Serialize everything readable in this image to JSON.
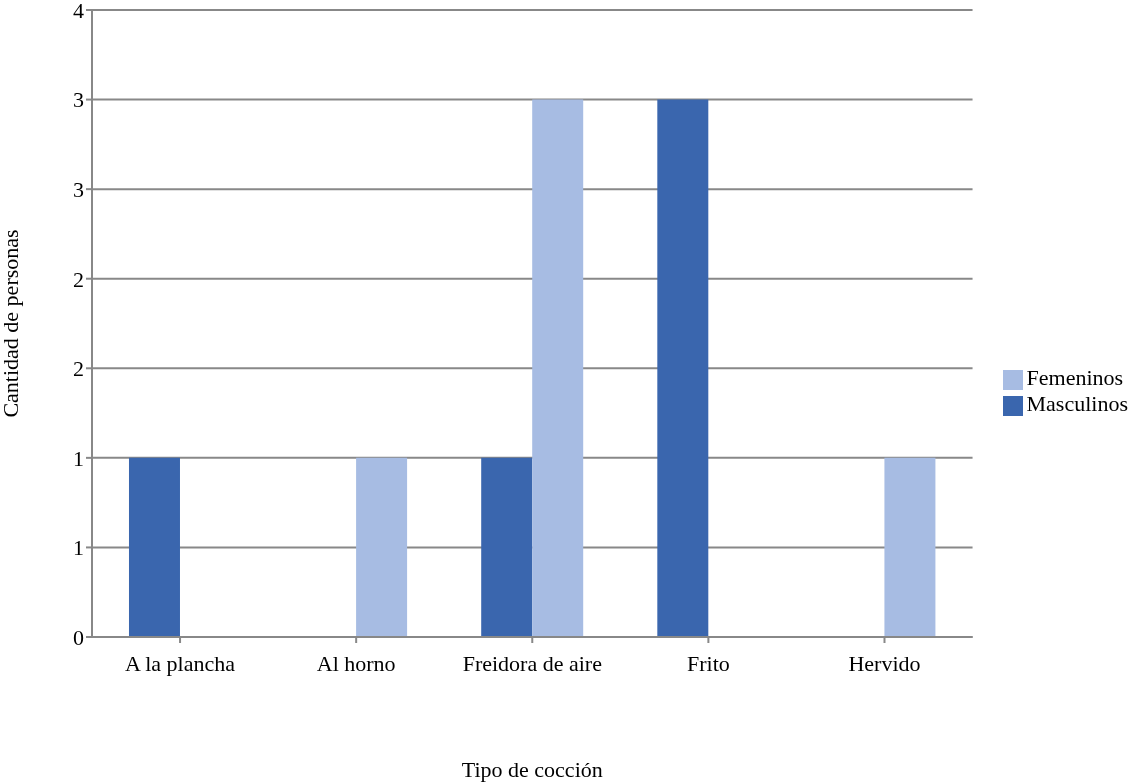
{
  "chart_data": {
    "type": "bar",
    "xlabel": "Tipo de cocción",
    "ylabel": "Cantidad de personas",
    "categories": [
      "A la plancha",
      "Al horno",
      "Freidora de aire",
      "Frito",
      "Hervido"
    ],
    "series": [
      {
        "name": "Masculinos",
        "color": "#3a66ae",
        "values": [
          1,
          0,
          1,
          3,
          0
        ]
      },
      {
        "name": "Femeninos",
        "color": "#a7bce3",
        "values": [
          0,
          1,
          3,
          0,
          1
        ]
      }
    ],
    "ylim": [
      0,
      3.5
    ],
    "yticks": [
      0,
      {
        "value": 0.5,
        "label": "1"
      },
      1,
      {
        "value": 1.5,
        "label": "2"
      },
      2,
      {
        "value": 2.5,
        "label": "3"
      },
      3,
      {
        "value": 3.5,
        "label": "4"
      }
    ],
    "grid": "y",
    "legend": "right"
  }
}
